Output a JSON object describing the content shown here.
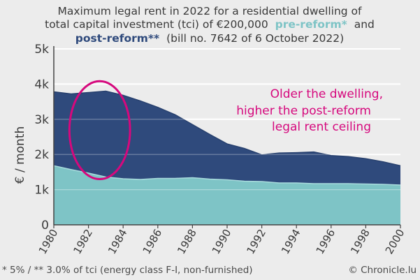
{
  "chart_data": {
    "type": "area",
    "title_lines": [
      "Maximum legal rent in 2022 for a residential dwelling of",
      "total capital investment (tci) of €200,000"
    ],
    "title_pre_label": "pre-reform*",
    "title_and": "and",
    "title_post_label": "post-reform**",
    "title_bill": "(bill no. 7642 of 6 October 2022)",
    "ylabel": "€ / month",
    "ylim": [
      0,
      5000
    ],
    "yticks": [
      0,
      1000,
      2000,
      3000,
      4000,
      5000
    ],
    "ytick_labels": [
      "0",
      "1k",
      "2k",
      "3k",
      "4k",
      "5k"
    ],
    "xlim": [
      1980,
      2000
    ],
    "xticks": [
      1980,
      1982,
      1984,
      1986,
      1988,
      1990,
      1992,
      1994,
      1996,
      1998,
      2000
    ],
    "xtick_labels": [
      "1980",
      "1982",
      "1984",
      "1986",
      "1988",
      "1990",
      "1992",
      "1994",
      "1996",
      "1998",
      "2000"
    ],
    "grid": "horizontal",
    "x": [
      1980,
      1981,
      1982,
      1983,
      1984,
      1985,
      1986,
      1987,
      1988,
      1989,
      1990,
      1991,
      1992,
      1993,
      1994,
      1995,
      1996,
      1997,
      1998,
      1999,
      2000
    ],
    "series": [
      {
        "name": "post-reform**",
        "color": "#2f4a7c",
        "values": [
          3780,
          3720,
          3760,
          3800,
          3680,
          3520,
          3340,
          3130,
          2850,
          2570,
          2300,
          2170,
          1990,
          2040,
          2050,
          2070,
          1970,
          1940,
          1880,
          1790,
          1680
        ]
      },
      {
        "name": "pre-reform*",
        "color": "#7ec4c6",
        "values": [
          1680,
          1570,
          1470,
          1360,
          1310,
          1290,
          1320,
          1320,
          1340,
          1300,
          1280,
          1240,
          1230,
          1190,
          1190,
          1170,
          1170,
          1170,
          1160,
          1150,
          1130
        ]
      }
    ],
    "annotation_lines": [
      "Older the dwelling,",
      "higher the post-reform",
      "legal rent ceiling"
    ],
    "annotation_color": "#d6087d",
    "highlight_ellipse_range": {
      "x": [
        1980.9,
        1984.4
      ],
      "y": [
        1300,
        4080
      ]
    },
    "footnote": "* 5% / ** 3.0% of tci (energy class F-I, non-furnished)",
    "source": "© Chronicle.lu"
  }
}
